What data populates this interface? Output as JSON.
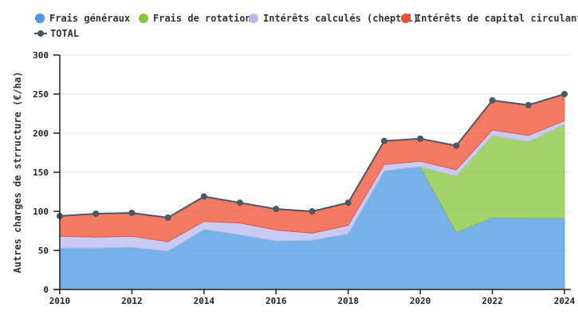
{
  "legend": [
    {
      "label": "Frais généraux",
      "color": "#4a97e3"
    },
    {
      "label": "Frais de rotation",
      "color": "#86c43a"
    },
    {
      "label": "Intérêts calculés (cheptel)",
      "color": "#b7b9f2"
    },
    {
      "label": "Intérêts de capital circulant",
      "color": "#f04e2f"
    },
    {
      "label": "TOTAL",
      "color": "#455a64"
    }
  ],
  "chart_data": {
    "type": "area",
    "stacked": true,
    "title": "",
    "xlabel": "",
    "ylabel": "Autres charges de strructure (€/ha)",
    "x": [
      2010,
      2011,
      2012,
      2013,
      2014,
      2015,
      2016,
      2017,
      2018,
      2019,
      2020,
      2021,
      2022,
      2023,
      2024
    ],
    "x_ticks": [
      "2010",
      "2012",
      "2014",
      "2016",
      "2018",
      "2020",
      "2022",
      "2024"
    ],
    "y_ticks": [
      "0",
      "50",
      "100",
      "150",
      "200",
      "250",
      "300"
    ],
    "ylim": [
      0,
      300
    ],
    "grid": true,
    "legend_position": "top",
    "series": [
      {
        "name": "Frais généraux",
        "color": "#4a97e3",
        "values": [
          53,
          53,
          54,
          49,
          77,
          70,
          62,
          63,
          71,
          152,
          157,
          73,
          92,
          91,
          91
        ]
      },
      {
        "name": "Frais de rotation",
        "color": "#86c43a",
        "values": [
          0,
          0,
          0,
          0,
          0,
          0,
          0,
          0,
          0,
          0,
          0,
          72,
          105,
          98,
          120
        ]
      },
      {
        "name": "Intérêts calculés (cheptel)",
        "color": "#b7b9f2",
        "values": [
          15,
          14,
          14,
          12,
          10,
          15,
          14,
          9,
          11,
          8,
          7,
          8,
          7,
          8,
          5
        ]
      },
      {
        "name": "Intérêts de capital circulant",
        "color": "#f04e2f",
        "values": [
          26,
          30,
          30,
          31,
          32,
          26,
          27,
          28,
          29,
          30,
          29,
          31,
          38,
          39,
          34
        ]
      },
      {
        "name": "TOTAL",
        "type": "line",
        "color": "#455a64",
        "values": [
          94,
          97,
          98,
          92,
          119,
          111,
          103,
          100,
          111,
          190,
          193,
          184,
          242,
          236,
          250
        ]
      }
    ]
  }
}
